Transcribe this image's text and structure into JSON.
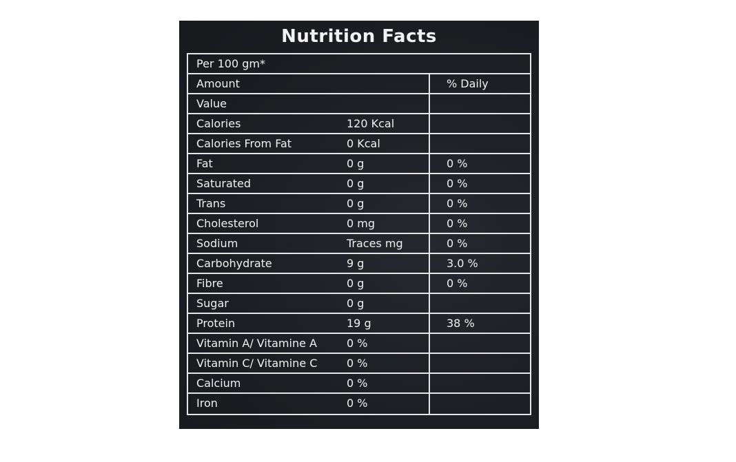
{
  "title": "Nutrition Facts",
  "serving": "Per 100 gm*",
  "header": {
    "amount": "Amount",
    "daily": "% Daily",
    "value": "Value"
  },
  "rows": [
    {
      "name": "Calories",
      "amount": "120 Kcal",
      "dv": ""
    },
    {
      "name": "Calories From Fat",
      "amount": "0 Kcal",
      "dv": ""
    },
    {
      "name": "Fat",
      "amount": "0 g",
      "dv": "0 %"
    },
    {
      "name": "Saturated",
      "amount": "0 g",
      "dv": "0 %"
    },
    {
      "name": "Trans",
      "amount": "0 g",
      "dv": "0 %"
    },
    {
      "name": "Cholesterol",
      "amount": "0 mg",
      "dv": "0 %"
    },
    {
      "name": "Sodium",
      "amount": "Traces mg",
      "dv": "0 %"
    },
    {
      "name": "Carbohydrate",
      "amount": "9 g",
      "dv": "3.0 %"
    },
    {
      "name": "Fibre",
      "amount": "0 g",
      "dv": "0 %"
    },
    {
      "name": "Sugar",
      "amount": "0 g",
      "dv": ""
    },
    {
      "name": "Protein",
      "amount": "19 g",
      "dv": "38 %"
    },
    {
      "name": "Vitamin A/ Vitamine A",
      "amount": "0 %",
      "dv": ""
    },
    {
      "name": "Vitamin C/ Vitamine C",
      "amount": "0 %",
      "dv": ""
    },
    {
      "name": "Calcium",
      "amount": "0 %",
      "dv": ""
    },
    {
      "name": "Iron",
      "amount": "0 %",
      "dv": ""
    }
  ]
}
